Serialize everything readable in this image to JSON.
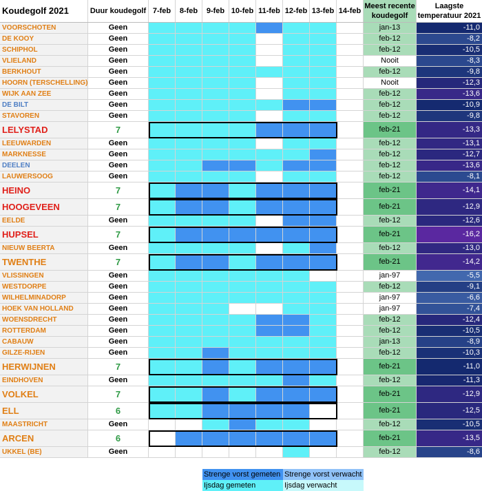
{
  "header": {
    "title": "Koudegolf 2021",
    "duration": "Duur koudegolf",
    "days": [
      "7-feb",
      "8-feb",
      "9-feb",
      "10-feb",
      "11-feb",
      "12-feb",
      "13-feb",
      "14-feb"
    ],
    "recent_line1": "Meest recente",
    "recent_line2": "koudegolf",
    "temp_line1": "Laagste",
    "temp_line2": "temperatuur 2021"
  },
  "colors": {
    "ijsdag_gemeten": "#5ff0f8",
    "strenge_vorst_gemeten": "#4192f0",
    "strenge_vorst_verwacht": "#90c2f8",
    "ijsdag_verwacht": "#c7f9fb"
  },
  "stations": [
    {
      "name": "VOORSCHOTEN",
      "dur": "Geen",
      "days": "LLLLDLLW",
      "recent": "jan-13",
      "temp": "-11,0",
      "style": "o"
    },
    {
      "name": "DE KOOY",
      "dur": "Geen",
      "days": "LLLLWLLW",
      "recent": "feb-12",
      "temp": "-8,2",
      "style": "o"
    },
    {
      "name": "SCHIPHOL",
      "dur": "Geen",
      "days": "LLLLWLLW",
      "recent": "feb-12",
      "temp": "-10,5",
      "style": "o"
    },
    {
      "name": "VLIELAND",
      "dur": "Geen",
      "days": "LLLLWLLW",
      "recent": "Nooit",
      "temp": "-8,3",
      "style": "o"
    },
    {
      "name": "BERKHOUT",
      "dur": "Geen",
      "days": "LLLLLLLW",
      "recent": "feb-12",
      "temp": "-9,8",
      "style": "o"
    },
    {
      "name": "HOORN (TERSCHELLING)",
      "dur": "Geen",
      "days": "LLLLWLLW",
      "recent": "Nooit",
      "temp": "-12,3",
      "style": "o"
    },
    {
      "name": "WIJK AAN ZEE",
      "dur": "Geen",
      "days": "LLLLWLLW",
      "recent": "feb-12",
      "temp": "-13,6",
      "style": "o"
    },
    {
      "name": "DE BILT",
      "dur": "Geen",
      "days": "LLLLLDDW",
      "recent": "feb-12",
      "temp": "-10,9",
      "style": "b"
    },
    {
      "name": "STAVOREN",
      "dur": "Geen",
      "days": "LLLLWLLW",
      "recent": "feb-12",
      "temp": "-9,8",
      "style": "o"
    },
    {
      "name": "LELYSTAD",
      "dur": "7",
      "days": "LLLLDDDW",
      "recent": "feb-21",
      "temp": "-13,3",
      "style": "r",
      "big": true
    },
    {
      "name": "LEEUWARDEN",
      "dur": "Geen",
      "days": "LLLLWLLW",
      "recent": "feb-12",
      "temp": "-13,1",
      "style": "o"
    },
    {
      "name": "MARKNESSE",
      "dur": "Geen",
      "days": "LLLLLLDW",
      "recent": "feb-12",
      "temp": "-12,7",
      "style": "o"
    },
    {
      "name": "DEELEN",
      "dur": "Geen",
      "days": "LLDDLDDW",
      "recent": "feb-12",
      "temp": "-13,6",
      "style": "b"
    },
    {
      "name": "LAUWERSOOG",
      "dur": "Geen",
      "days": "LLLLWLLW",
      "recent": "feb-12",
      "temp": "-8,1",
      "style": "o"
    },
    {
      "name": "HEINO",
      "dur": "7",
      "days": "LDDLDDDW",
      "recent": "feb-21",
      "temp": "-14,1",
      "style": "r",
      "big": true
    },
    {
      "name": "HOOGEVEEN",
      "dur": "7",
      "days": "LDDLDDDW",
      "recent": "feb-21",
      "temp": "-12,9",
      "style": "r",
      "big": true
    },
    {
      "name": "EELDE",
      "dur": "Geen",
      "days": "LLLLWDDW",
      "recent": "feb-12",
      "temp": "-12,6",
      "style": "o"
    },
    {
      "name": "HUPSEL",
      "dur": "7",
      "days": "LDDDDDDW",
      "recent": "feb-21",
      "temp": "-16,2",
      "style": "r",
      "big": true
    },
    {
      "name": "NIEUW BEERTA",
      "dur": "Geen",
      "days": "LLLLWLDW",
      "recent": "feb-12",
      "temp": "-13,0",
      "style": "o"
    },
    {
      "name": "TWENTHE",
      "dur": "7",
      "days": "LDDLDDDW",
      "recent": "feb-21",
      "temp": "-14,2",
      "style": "ob",
      "big": true
    },
    {
      "name": "VLISSINGEN",
      "dur": "Geen",
      "days": "LLLLLLWW",
      "recent": "jan-97",
      "temp": "-5,5",
      "style": "o"
    },
    {
      "name": "WESTDORPE",
      "dur": "Geen",
      "days": "LLLLLLLW",
      "recent": "feb-12",
      "temp": "-9,1",
      "style": "o"
    },
    {
      "name": "WILHELMINADORP",
      "dur": "Geen",
      "days": "LLLLLLLW",
      "recent": "jan-97",
      "temp": "-6,6",
      "style": "o"
    },
    {
      "name": "HOEK VAN HOLLAND",
      "dur": "Geen",
      "days": "LLLWWLLW",
      "recent": "jan-97",
      "temp": "-7,4",
      "style": "o"
    },
    {
      "name": "WOENSDRECHT",
      "dur": "Geen",
      "days": "LLLLDDLW",
      "recent": "feb-12",
      "temp": "-12,4",
      "style": "o"
    },
    {
      "name": "ROTTERDAM",
      "dur": "Geen",
      "days": "LLLLDDLW",
      "recent": "feb-12",
      "temp": "-10,5",
      "style": "o"
    },
    {
      "name": "CABAUW",
      "dur": "Geen",
      "days": "LLLLLLLW",
      "recent": "jan-13",
      "temp": "-8,9",
      "style": "o"
    },
    {
      "name": "GILZE-RIJEN",
      "dur": "Geen",
      "days": "LLDLLLLW",
      "recent": "feb-12",
      "temp": "-10,3",
      "style": "o"
    },
    {
      "name": "HERWIJNEN",
      "dur": "7",
      "days": "LLDLDDDW",
      "recent": "feb-21",
      "temp": "-11,0",
      "style": "ob",
      "big": true
    },
    {
      "name": "EINDHOVEN",
      "dur": "Geen",
      "days": "LLLLLDLW",
      "recent": "feb-12",
      "temp": "-11,3",
      "style": "o"
    },
    {
      "name": "VOLKEL",
      "dur": "7",
      "days": "LLDLDDDW",
      "recent": "feb-21",
      "temp": "-12,9",
      "style": "ob",
      "big": true
    },
    {
      "name": "ELL",
      "dur": "6",
      "days": "LLDDDDWW",
      "recent": "feb-21",
      "temp": "-12,5",
      "style": "ob",
      "big": true
    },
    {
      "name": "MAASTRICHT",
      "dur": "Geen",
      "days": "WWLDLLWW",
      "recent": "feb-12",
      "temp": "-10,5",
      "style": "o"
    },
    {
      "name": "ARCEN",
      "dur": "6",
      "days": "WDDDDDDW",
      "recent": "feb-21",
      "temp": "-13,5",
      "style": "ob",
      "big": true
    },
    {
      "name": "UKKEL (BE)",
      "dur": "Geen",
      "days": "WWWWWLWW",
      "recent": "feb-12",
      "temp": "-8,6",
      "style": "o"
    }
  ],
  "legend": {
    "strenge_vorst_gemeten": "Strenge vorst gemeten",
    "strenge_vorst_verwacht": "Strenge vorst verwacht",
    "ijsdag_gemeten": "Ijsdag gemeten",
    "ijsdag_verwacht": "Ijsdag verwacht"
  }
}
